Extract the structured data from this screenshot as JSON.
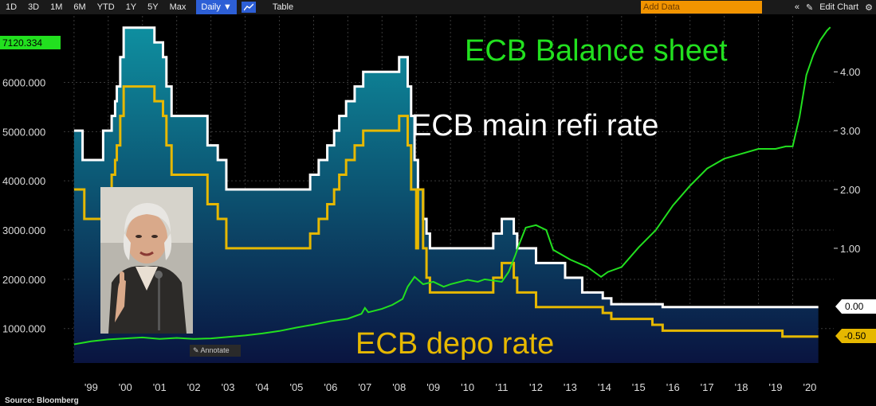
{
  "toolbar": {
    "ranges": [
      "1D",
      "3D",
      "1M",
      "6M",
      "YTD",
      "1Y",
      "5Y",
      "Max"
    ],
    "frequency": "Daily ▼",
    "table_label": "Table",
    "add_data_placeholder": "Add Data",
    "edit_chart": "Edit Chart",
    "collapse": "«",
    "pencil": "✎",
    "settings": "⚙"
  },
  "annotate_label": "Annotate",
  "source": "Source: Bloomberg",
  "colors": {
    "balance": "#22e01f",
    "refi": "#ffffff",
    "depo": "#e6b800",
    "fill_top": "#0e8fa0",
    "fill_bottom": "#0a1440"
  },
  "chart_data": {
    "type": "line",
    "annotations": {
      "balance": "ECB Balance sheet",
      "refi": "ECB main refi rate",
      "depo": "ECB depo rate"
    },
    "x_ticks": [
      "'99",
      "'00",
      "'01",
      "'02",
      "'03",
      "'04",
      "'05",
      "'06",
      "'07",
      "'08",
      "'09",
      "'10",
      "'11",
      "'12",
      "'13",
      "'14",
      "'15",
      "'16",
      "'17",
      "'18",
      "'19",
      "'20"
    ],
    "xlim": [
      1998.7,
      2021.2
    ],
    "left_axis": {
      "ticks": [
        "1000.000",
        "2000.000",
        "3000.000",
        "4000.000",
        "5000.000",
        "6000.000"
      ],
      "tick_values": [
        1000,
        2000,
        3000,
        4000,
        5000,
        6000
      ],
      "range": [
        300,
        7350
      ],
      "last_value": "7120.334"
    },
    "right_axis": {
      "ticks": [
        "1.00",
        "2.00",
        "3.00",
        "4.00"
      ],
      "tick_values": [
        1,
        2,
        3,
        4
      ],
      "range": [
        -0.95,
        4.95
      ],
      "refi_last": "0.00",
      "depo_last": "-0.50"
    },
    "series": [
      {
        "name": "ECB main refi rate",
        "axis": "right",
        "step": true,
        "points": [
          [
            1999.0,
            3.0
          ],
          [
            1999.25,
            2.5
          ],
          [
            1999.85,
            3.0
          ],
          [
            2000.1,
            3.25
          ],
          [
            2000.2,
            3.5
          ],
          [
            2000.25,
            3.75
          ],
          [
            2000.35,
            4.25
          ],
          [
            2000.45,
            4.75
          ],
          [
            2000.75,
            4.75
          ],
          [
            2001.35,
            4.5
          ],
          [
            2001.6,
            4.25
          ],
          [
            2001.7,
            3.75
          ],
          [
            2001.85,
            3.25
          ],
          [
            2002.9,
            2.75
          ],
          [
            2003.2,
            2.5
          ],
          [
            2003.45,
            2.0
          ],
          [
            2005.9,
            2.25
          ],
          [
            2006.15,
            2.5
          ],
          [
            2006.4,
            2.75
          ],
          [
            2006.6,
            3.0
          ],
          [
            2006.75,
            3.25
          ],
          [
            2006.95,
            3.5
          ],
          [
            2007.2,
            3.75
          ],
          [
            2007.45,
            4.0
          ],
          [
            2008.5,
            4.25
          ],
          [
            2008.75,
            3.75
          ],
          [
            2008.85,
            3.25
          ],
          [
            2008.95,
            2.5
          ],
          [
            2009.05,
            2.0
          ],
          [
            2009.2,
            1.5
          ],
          [
            2009.3,
            1.25
          ],
          [
            2009.4,
            1.0
          ],
          [
            2011.25,
            1.25
          ],
          [
            2011.5,
            1.5
          ],
          [
            2011.85,
            1.25
          ],
          [
            2011.95,
            1.0
          ],
          [
            2012.5,
            0.75
          ],
          [
            2013.35,
            0.5
          ],
          [
            2013.85,
            0.25
          ],
          [
            2014.45,
            0.15
          ],
          [
            2014.7,
            0.05
          ],
          [
            2016.2,
            0.0
          ],
          [
            2020.75,
            0.0
          ]
        ]
      },
      {
        "name": "ECB depo rate",
        "axis": "right",
        "step": true,
        "points": [
          [
            1999.0,
            2.0
          ],
          [
            1999.05,
            2.0
          ],
          [
            1999.3,
            1.5
          ],
          [
            1999.85,
            2.0
          ],
          [
            2000.1,
            2.25
          ],
          [
            2000.2,
            2.5
          ],
          [
            2000.25,
            2.75
          ],
          [
            2000.35,
            3.25
          ],
          [
            2000.45,
            3.75
          ],
          [
            2001.35,
            3.5
          ],
          [
            2001.6,
            3.25
          ],
          [
            2001.7,
            2.75
          ],
          [
            2001.85,
            2.25
          ],
          [
            2002.9,
            1.75
          ],
          [
            2003.2,
            1.5
          ],
          [
            2003.45,
            1.0
          ],
          [
            2005.9,
            1.25
          ],
          [
            2006.15,
            1.5
          ],
          [
            2006.4,
            1.75
          ],
          [
            2006.6,
            2.0
          ],
          [
            2006.75,
            2.25
          ],
          [
            2006.95,
            2.5
          ],
          [
            2007.2,
            2.75
          ],
          [
            2007.45,
            3.0
          ],
          [
            2008.5,
            3.25
          ],
          [
            2008.75,
            2.75
          ],
          [
            2008.85,
            2.0
          ],
          [
            2009.0,
            1.0
          ],
          [
            2009.05,
            2.0
          ],
          [
            2009.2,
            1.0
          ],
          [
            2009.3,
            0.5
          ],
          [
            2009.4,
            0.25
          ],
          [
            2011.25,
            0.5
          ],
          [
            2011.5,
            0.75
          ],
          [
            2011.85,
            0.5
          ],
          [
            2011.95,
            0.25
          ],
          [
            2012.5,
            0.0
          ],
          [
            2014.45,
            -0.1
          ],
          [
            2014.7,
            -0.2
          ],
          [
            2015.9,
            -0.3
          ],
          [
            2016.2,
            -0.4
          ],
          [
            2019.7,
            -0.5
          ],
          [
            2020.75,
            -0.5
          ]
        ]
      },
      {
        "name": "ECB Balance sheet",
        "axis": "left",
        "step": false,
        "points": [
          [
            1999.0,
            680
          ],
          [
            1999.5,
            740
          ],
          [
            2000.0,
            780
          ],
          [
            2000.5,
            800
          ],
          [
            2001.0,
            820
          ],
          [
            2001.5,
            790
          ],
          [
            2002.0,
            810
          ],
          [
            2002.5,
            790
          ],
          [
            2003.0,
            800
          ],
          [
            2003.5,
            830
          ],
          [
            2004.0,
            860
          ],
          [
            2004.5,
            900
          ],
          [
            2005.0,
            950
          ],
          [
            2005.5,
            1020
          ],
          [
            2006.0,
            1080
          ],
          [
            2006.5,
            1150
          ],
          [
            2007.0,
            1200
          ],
          [
            2007.4,
            1300
          ],
          [
            2007.5,
            1420
          ],
          [
            2007.6,
            1330
          ],
          [
            2008.0,
            1400
          ],
          [
            2008.3,
            1480
          ],
          [
            2008.6,
            1600
          ],
          [
            2008.75,
            1850
          ],
          [
            2008.95,
            2050
          ],
          [
            2009.2,
            1900
          ],
          [
            2009.5,
            1950
          ],
          [
            2009.8,
            1850
          ],
          [
            2010.0,
            1900
          ],
          [
            2010.5,
            1990
          ],
          [
            2010.8,
            1950
          ],
          [
            2011.0,
            2000
          ],
          [
            2011.5,
            1950
          ],
          [
            2011.7,
            2150
          ],
          [
            2011.9,
            2500
          ],
          [
            2012.0,
            2700
          ],
          [
            2012.2,
            3050
          ],
          [
            2012.5,
            3100
          ],
          [
            2012.8,
            3000
          ],
          [
            2013.0,
            2600
          ],
          [
            2013.5,
            2400
          ],
          [
            2014.0,
            2250
          ],
          [
            2014.4,
            2050
          ],
          [
            2014.6,
            2150
          ],
          [
            2015.0,
            2250
          ],
          [
            2015.5,
            2650
          ],
          [
            2016.0,
            3000
          ],
          [
            2016.5,
            3500
          ],
          [
            2017.0,
            3900
          ],
          [
            2017.5,
            4250
          ],
          [
            2018.0,
            4450
          ],
          [
            2018.5,
            4550
          ],
          [
            2019.0,
            4650
          ],
          [
            2019.5,
            4650
          ],
          [
            2019.8,
            4700
          ],
          [
            2020.0,
            4700
          ],
          [
            2020.2,
            5300
          ],
          [
            2020.4,
            6150
          ],
          [
            2020.6,
            6550
          ],
          [
            2020.8,
            6850
          ],
          [
            2021.0,
            7050
          ],
          [
            2021.1,
            7120
          ]
        ]
      }
    ]
  }
}
